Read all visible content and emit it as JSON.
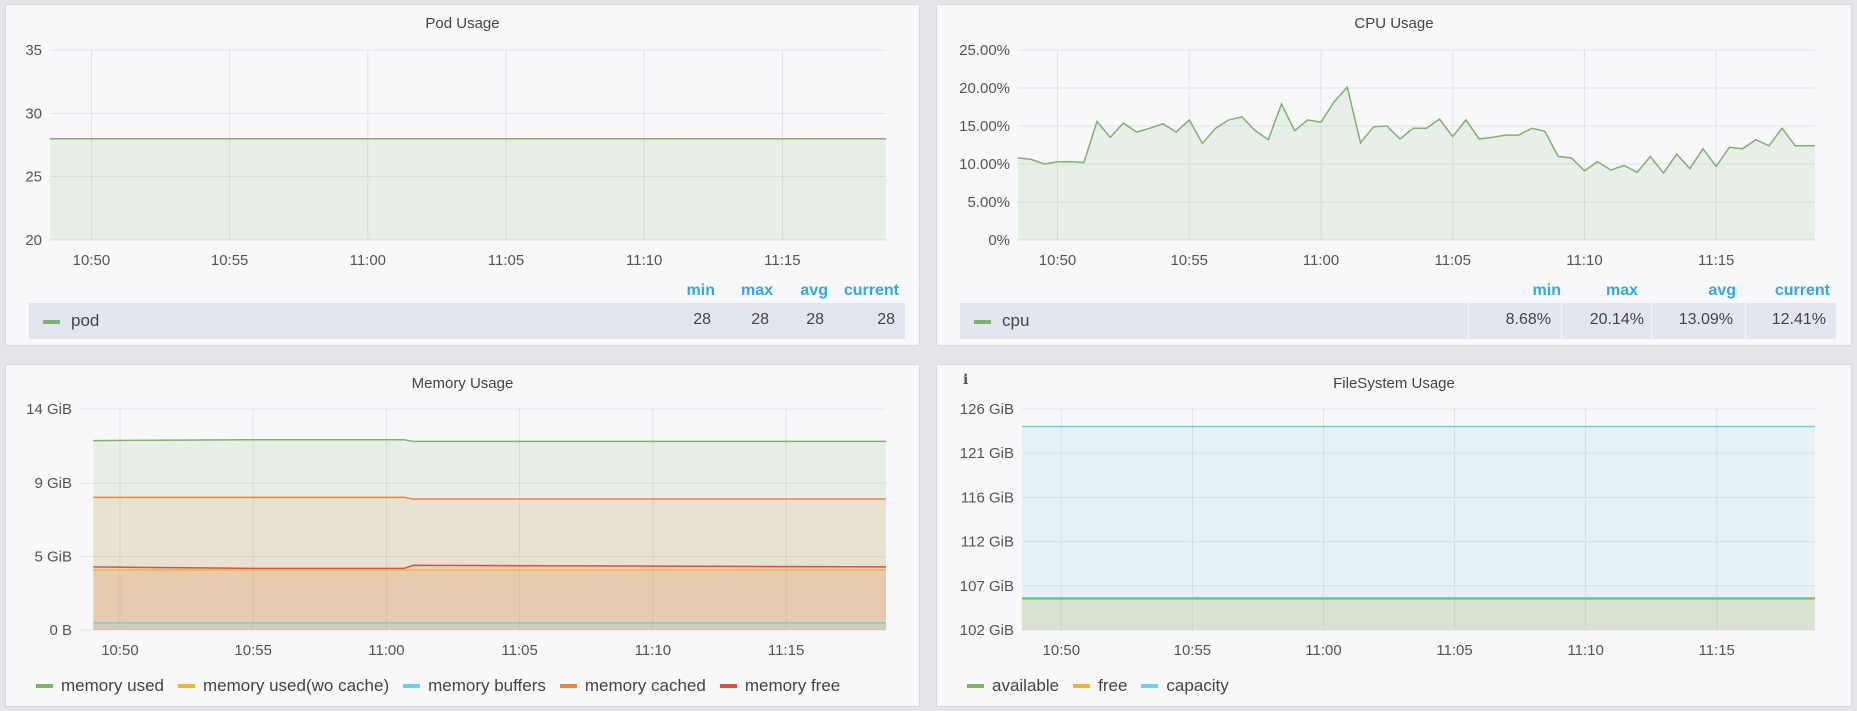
{
  "panels": {
    "pod": {
      "title": "Pod Usage",
      "legend_headers": {
        "min": "min",
        "max": "max",
        "avg": "avg",
        "current": "current"
      },
      "legend_rows": [
        {
          "name": "pod",
          "color": "#7eb26d",
          "min": "28",
          "max": "28",
          "avg": "28",
          "current": "28"
        }
      ]
    },
    "cpu": {
      "title": "CPU Usage",
      "legend_headers": {
        "min": "min",
        "max": "max",
        "avg": "avg",
        "current": "current"
      },
      "legend_rows": [
        {
          "name": "cpu",
          "color": "#7eb26d",
          "min": "8.68%",
          "max": "20.14%",
          "avg": "13.09%",
          "current": "12.41%"
        }
      ]
    },
    "memory": {
      "title": "Memory Usage",
      "legend": [
        {
          "name": "memory used",
          "color": "#7eb26d"
        },
        {
          "name": "memory used(wo cache)",
          "color": "#eab839"
        },
        {
          "name": "memory buffers",
          "color": "#6ed0e0"
        },
        {
          "name": "memory cached",
          "color": "#ef843c"
        },
        {
          "name": "memory free",
          "color": "#e24d42"
        }
      ]
    },
    "fs": {
      "title": "FileSystem Usage",
      "info_icon": "i",
      "legend": [
        {
          "name": "available",
          "color": "#7eb26d"
        },
        {
          "name": "free",
          "color": "#eab839"
        },
        {
          "name": "capacity",
          "color": "#6ed0e0"
        }
      ]
    }
  },
  "chart_data": [
    {
      "id": "pod",
      "type": "area",
      "title": "Pod Usage",
      "xlabel": "",
      "ylabel": "",
      "xlim": [
        "10:48:30",
        "11:18:45"
      ],
      "ylim": [
        20,
        35
      ],
      "yticks": [
        20,
        25,
        30,
        35
      ],
      "ytick_labels": [
        "20",
        "25",
        "30",
        "35"
      ],
      "xticks": [
        "10:50",
        "10:55",
        "11:00",
        "11:05",
        "11:10",
        "11:15"
      ],
      "grid": true,
      "legend": "table-bottom",
      "series": [
        {
          "name": "pod",
          "color": "#7eb26d",
          "points": [
            [
              "10:48:30",
              28
            ],
            [
              "11:18:45",
              28
            ]
          ]
        }
      ]
    },
    {
      "id": "cpu",
      "type": "line",
      "title": "CPU Usage",
      "xlabel": "",
      "ylabel": "",
      "xlim": [
        "10:48:30",
        "11:18:45"
      ],
      "ylim": [
        0,
        25
      ],
      "yticks": [
        0,
        5,
        10,
        15,
        20,
        25
      ],
      "ytick_labels": [
        "0%",
        "5.00%",
        "10.00%",
        "15.00%",
        "20.00%",
        "25.00%"
      ],
      "xticks": [
        "10:50",
        "10:55",
        "11:00",
        "11:05",
        "11:10",
        "11:15"
      ],
      "grid": true,
      "legend": "table-bottom",
      "series": [
        {
          "name": "cpu",
          "color": "#7eb26d",
          "points": [
            [
              "10:48:30",
              10.8
            ],
            [
              "10:49:00",
              10.6
            ],
            [
              "10:49:30",
              10.0
            ],
            [
              "10:50:00",
              10.3
            ],
            [
              "10:50:30",
              10.3
            ],
            [
              "10:51:00",
              10.2
            ],
            [
              "10:51:30",
              15.6
            ],
            [
              "10:52:00",
              13.5
            ],
            [
              "10:52:30",
              15.4
            ],
            [
              "10:53:00",
              14.2
            ],
            [
              "10:53:30",
              14.7
            ],
            [
              "10:54:00",
              15.3
            ],
            [
              "10:54:30",
              14.2
            ],
            [
              "10:55:00",
              15.8
            ],
            [
              "10:55:30",
              12.7
            ],
            [
              "10:56:00",
              14.7
            ],
            [
              "10:56:30",
              15.8
            ],
            [
              "10:57:00",
              16.2
            ],
            [
              "10:57:30",
              14.4
            ],
            [
              "10:58:00",
              13.2
            ],
            [
              "10:58:30",
              17.9
            ],
            [
              "10:59:00",
              14.4
            ],
            [
              "10:59:30",
              15.8
            ],
            [
              "11:00:00",
              15.5
            ],
            [
              "11:00:30",
              18.2
            ],
            [
              "11:01:00",
              20.1
            ],
            [
              "11:01:30",
              12.8
            ],
            [
              "11:02:00",
              14.9
            ],
            [
              "11:02:30",
              15.0
            ],
            [
              "11:03:00",
              13.3
            ],
            [
              "11:03:30",
              14.7
            ],
            [
              "11:04:00",
              14.7
            ],
            [
              "11:04:30",
              15.9
            ],
            [
              "11:05:00",
              13.6
            ],
            [
              "11:05:30",
              15.8
            ],
            [
              "11:06:00",
              13.3
            ],
            [
              "11:06:30",
              13.5
            ],
            [
              "11:07:00",
              13.8
            ],
            [
              "11:07:30",
              13.8
            ],
            [
              "11:08:00",
              14.7
            ],
            [
              "11:08:30",
              14.3
            ],
            [
              "11:09:00",
              11.0
            ],
            [
              "11:09:30",
              10.8
            ],
            [
              "11:10:00",
              9.1
            ],
            [
              "11:10:30",
              10.3
            ],
            [
              "11:11:00",
              9.2
            ],
            [
              "11:11:30",
              9.8
            ],
            [
              "11:12:00",
              8.9
            ],
            [
              "11:12:30",
              11.0
            ],
            [
              "11:13:00",
              8.8
            ],
            [
              "11:13:30",
              11.3
            ],
            [
              "11:14:00",
              9.4
            ],
            [
              "11:14:30",
              12.0
            ],
            [
              "11:15:00",
              9.7
            ],
            [
              "11:15:30",
              12.2
            ],
            [
              "11:16:00",
              12.0
            ],
            [
              "11:16:30",
              13.2
            ],
            [
              "11:17:00",
              12.4
            ],
            [
              "11:17:30",
              14.7
            ],
            [
              "11:18:00",
              12.4
            ],
            [
              "11:18:45",
              12.4
            ]
          ]
        }
      ]
    },
    {
      "id": "memory",
      "type": "area",
      "title": "Memory Usage",
      "xlabel": "",
      "ylabel": "",
      "xlim": [
        "10:48:30",
        "11:18:45"
      ],
      "ylim": [
        0,
        14
      ],
      "yticks": [
        0,
        4.65,
        9.3,
        14
      ],
      "ytick_labels": [
        "0 B",
        "5 GiB",
        "9 GiB",
        "14 GiB"
      ],
      "xticks": [
        "10:50",
        "10:55",
        "11:00",
        "11:05",
        "11:10",
        "11:15"
      ],
      "grid": true,
      "legend": "bottom",
      "series": [
        {
          "name": "memory used",
          "color": "#7eb26d",
          "points": [
            [
              "10:49:00",
              12.0
            ],
            [
              "10:55:00",
              12.05
            ],
            [
              "11:00:40",
              12.05
            ],
            [
              "11:01:00",
              11.95
            ],
            [
              "11:18:45",
              11.95
            ]
          ]
        },
        {
          "name": "memory cached",
          "color": "#ef843c",
          "points": [
            [
              "10:49:00",
              8.4
            ],
            [
              "10:55:00",
              8.4
            ],
            [
              "11:00:40",
              8.4
            ],
            [
              "11:01:00",
              8.3
            ],
            [
              "11:18:45",
              8.3
            ]
          ]
        },
        {
          "name": "memory free",
          "color": "#e24d42",
          "points": [
            [
              "10:49:00",
              4.0
            ],
            [
              "10:55:00",
              3.9
            ],
            [
              "11:00:40",
              3.9
            ],
            [
              "11:01:00",
              4.1
            ],
            [
              "11:18:45",
              4.0
            ]
          ]
        },
        {
          "name": "memory used(wo cache)",
          "color": "#eab839",
          "points": [
            [
              "10:49:00",
              3.8
            ],
            [
              "11:18:45",
              3.8
            ]
          ]
        },
        {
          "name": "memory buffers",
          "color": "#6ed0e0",
          "points": [
            [
              "10:49:00",
              0.45
            ],
            [
              "11:18:45",
              0.45
            ]
          ]
        }
      ]
    },
    {
      "id": "fs",
      "type": "area",
      "title": "FileSystem Usage",
      "xlabel": "",
      "ylabel": "",
      "xlim": [
        "10:48:30",
        "11:18:45"
      ],
      "ylim": [
        102,
        126
      ],
      "yticks": [
        102,
        106.8,
        111.6,
        116.4,
        121.2,
        126
      ],
      "ytick_labels": [
        "102 GiB",
        "107 GiB",
        "112 GiB",
        "116 GiB",
        "121 GiB",
        "126 GiB"
      ],
      "xticks": [
        "10:50",
        "10:55",
        "11:00",
        "11:05",
        "11:10",
        "11:15"
      ],
      "grid": true,
      "legend": "bottom",
      "series": [
        {
          "name": "capacity",
          "color": "#6ed0e0",
          "points": [
            [
              "10:48:30",
              124.1
            ],
            [
              "11:18:45",
              124.1
            ]
          ]
        },
        {
          "name": "free",
          "color": "#eab839",
          "points": [
            [
              "10:48:30",
              105.5
            ],
            [
              "11:18:45",
              105.5
            ]
          ]
        },
        {
          "name": "available",
          "color": "#7eb26d",
          "points": [
            [
              "10:48:30",
              105.4
            ],
            [
              "11:18:45",
              105.4
            ]
          ]
        }
      ]
    }
  ]
}
